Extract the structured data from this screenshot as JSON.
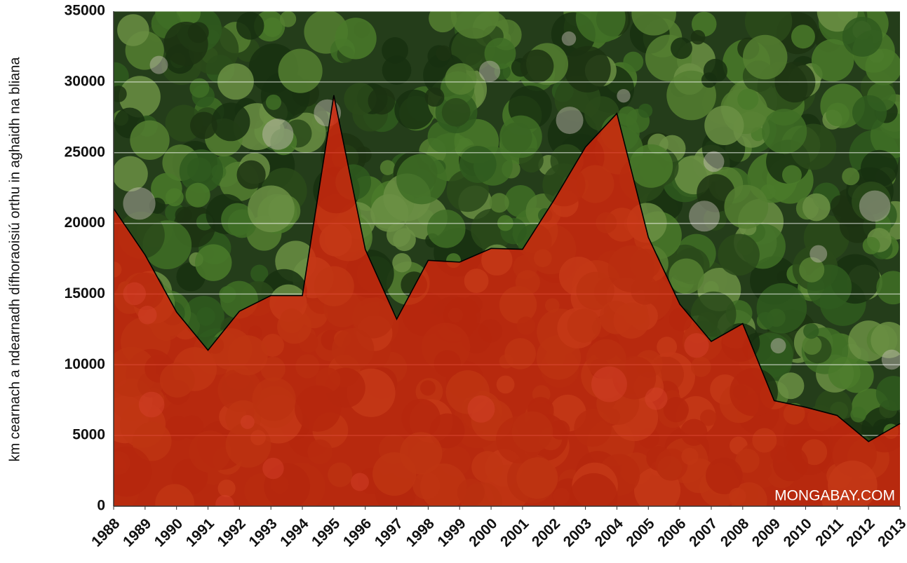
{
  "chart_data": {
    "type": "area",
    "ylabel": "km cearnach a ndearnadh dífhoraoisiú orthu in aghaidh na bliana",
    "watermark": "MONGABAY.COM",
    "x": [
      1988,
      1989,
      1990,
      1991,
      1992,
      1993,
      1994,
      1995,
      1996,
      1997,
      1998,
      1999,
      2000,
      2001,
      2002,
      2003,
      2004,
      2005,
      2006,
      2007,
      2008,
      2009,
      2010,
      2011,
      2012,
      2013
    ],
    "values": [
      21050,
      17770,
      13730,
      11030,
      13786,
      14896,
      14896,
      29059,
      18161,
      13227,
      17383,
      17259,
      18226,
      18165,
      21651,
      25396,
      27772,
      19014,
      14286,
      11651,
      12911,
      7464,
      7000,
      6418,
      4571,
      5843
    ],
    "color": "#d8250c",
    "xlim": [
      1988,
      2013
    ],
    "xticks": [
      1988,
      1989,
      1990,
      1991,
      1992,
      1993,
      1994,
      1995,
      1996,
      1997,
      1998,
      1999,
      2000,
      2001,
      2002,
      2003,
      2004,
      2005,
      2006,
      2007,
      2008,
      2009,
      2010,
      2011,
      2012,
      2013
    ],
    "ylim": [
      0,
      35000
    ],
    "yticks": [
      0,
      5000,
      10000,
      15000,
      20000,
      25000,
      30000,
      35000
    ],
    "grid": true
  }
}
